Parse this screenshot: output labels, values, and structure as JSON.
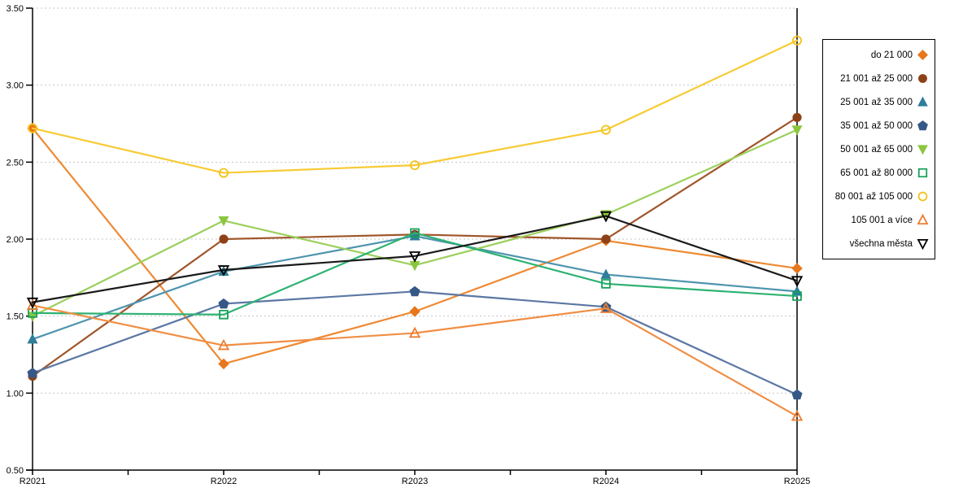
{
  "chart_data": {
    "type": "line",
    "title": "",
    "xlabel": "",
    "ylabel": "",
    "categories": [
      "R2021",
      "R2022",
      "R2023",
      "R2024",
      "R2025"
    ],
    "ylim": [
      0.5,
      3.5
    ],
    "ytick_step": 0.5,
    "ytick_labels": [
      "0.50",
      "1.00",
      "1.50",
      "2.00",
      "2.50",
      "3.00",
      "3.50"
    ],
    "grid": "horizontal-dashed",
    "gridline_color": "#C6C6C6",
    "axis_color": "#000000",
    "legend_position": "right",
    "series": [
      {
        "name": "do 21 000",
        "marker": "diamond",
        "marker_style": "solid",
        "color": "#E8761B",
        "line_color": "#ED8A33",
        "values": [
          2.72,
          1.19,
          1.53,
          1.99,
          1.81
        ]
      },
      {
        "name": "21 001 až 25 000",
        "marker": "circle",
        "marker_style": "solid",
        "color": "#8E4117",
        "line_color": "#A0562B",
        "values": [
          1.11,
          2.0,
          2.03,
          2.0,
          2.79
        ]
      },
      {
        "name": "25 001 až 35 000",
        "marker": "triangle-up",
        "marker_style": "solid",
        "color": "#2E7E9C",
        "line_color": "#4E94AE",
        "values": [
          1.35,
          1.79,
          2.02,
          1.77,
          1.66
        ]
      },
      {
        "name": "35 001 až 50 000",
        "marker": "pentagon",
        "marker_style": "solid",
        "color": "#365887",
        "line_color": "#5C77A4",
        "values": [
          1.13,
          1.58,
          1.66,
          1.56,
          0.99
        ]
      },
      {
        "name": "50 001 až 65 000",
        "marker": "triangle-down",
        "marker_style": "solid",
        "color": "#8CC63F",
        "line_color": "#9CD05C",
        "values": [
          1.5,
          2.12,
          1.83,
          2.16,
          2.71
        ]
      },
      {
        "name": "65 001 až 80 000",
        "marker": "square",
        "marker_style": "open",
        "color": "#17A25A",
        "line_color": "#2EB273",
        "values": [
          1.52,
          1.51,
          2.04,
          1.71,
          1.63
        ]
      },
      {
        "name": "80 001 až 105 000",
        "marker": "circle",
        "marker_style": "open",
        "color": "#F2C318",
        "line_color": "#F7CB34",
        "values": [
          2.72,
          2.43,
          2.48,
          2.71,
          3.29
        ]
      },
      {
        "name": "105 001 a více",
        "marker": "triangle-up",
        "marker_style": "open",
        "color": "#ED7D31",
        "line_color": "#F08E44",
        "values": [
          1.57,
          1.31,
          1.39,
          1.55,
          0.85
        ]
      },
      {
        "name": "všechna města",
        "marker": "triangle-down",
        "marker_style": "open",
        "color": "#000000",
        "line_color": "#1A1A1A",
        "values": [
          1.59,
          1.8,
          1.89,
          2.15,
          1.73
        ]
      }
    ]
  }
}
